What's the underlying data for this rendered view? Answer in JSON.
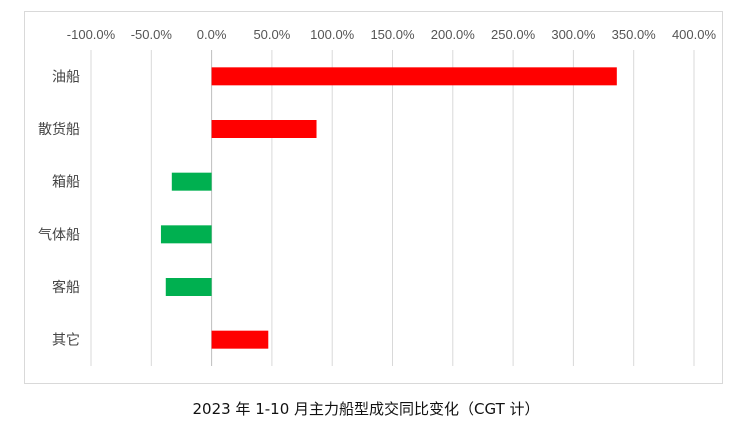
{
  "chart_data": {
    "type": "bar",
    "orientation": "horizontal",
    "title": "2023 年 1-10 月主力船型成交同比变化（CGT 计）",
    "categories": [
      "油船",
      "散货船",
      "箱船",
      "气体船",
      "客船",
      "其它"
    ],
    "values": [
      336,
      87,
      -33,
      -42,
      -38,
      47
    ],
    "value_unit": "%",
    "xlim": [
      -100,
      400
    ],
    "xticks": [
      -100,
      -50,
      0,
      50,
      100,
      150,
      200,
      250,
      300,
      350,
      400
    ],
    "xtick_labels": [
      "-100.0%",
      "-50.0%",
      "0.0%",
      "50.0%",
      "100.0%",
      "150.0%",
      "200.0%",
      "250.0%",
      "300.0%",
      "350.0%",
      "400.0%"
    ],
    "xaxis_position": "top",
    "grid": true,
    "legend": "none",
    "colors": {
      "positive": "#ff0000",
      "negative": "#00b050",
      "grid": "#d9d9d9",
      "axis": "#bfbfbf"
    }
  }
}
